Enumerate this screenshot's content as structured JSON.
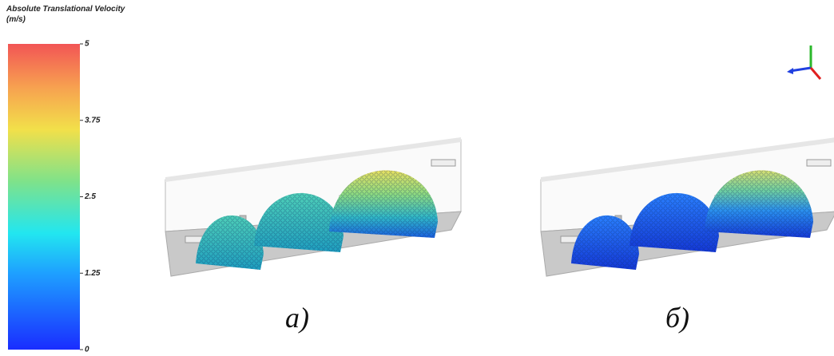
{
  "colorbar": {
    "title": "Absolute Translational Velocity",
    "unit": "(m/s)",
    "range": [
      0,
      5
    ],
    "ticks": [
      0,
      1.25,
      2.5,
      3.75,
      5
    ]
  },
  "panels": [
    {
      "label": "a)"
    },
    {
      "label": "б)"
    }
  ]
}
